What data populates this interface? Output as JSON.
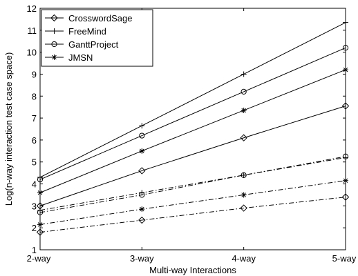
{
  "chart_data": {
    "type": "line",
    "xlabel": "Multi-way Interactions",
    "ylabel": "Log(n-way interaction test case space)",
    "categories": [
      "2-way",
      "3-way",
      "4-way",
      "5-way"
    ],
    "ylim": [
      1,
      12
    ],
    "yticks": [
      "1",
      "2",
      "3",
      "4",
      "5",
      "6",
      "7",
      "8",
      "9",
      "10",
      "11",
      "12"
    ],
    "grid": false,
    "legend_position": "top-left",
    "series": [
      {
        "name": "CrosswordSage",
        "marker": "diamond",
        "linestyle": "solid",
        "values": [
          3.0,
          4.6,
          6.1,
          7.55
        ]
      },
      {
        "name": "FreeMind",
        "marker": "plus",
        "linestyle": "solid",
        "values": [
          4.3,
          6.65,
          9.0,
          11.35
        ]
      },
      {
        "name": "GanttProject",
        "marker": "circle",
        "linestyle": "solid",
        "values": [
          4.2,
          6.2,
          8.2,
          10.2
        ]
      },
      {
        "name": "JMSN",
        "marker": "asterisk",
        "linestyle": "solid",
        "values": [
          3.6,
          5.5,
          7.35,
          9.2
        ]
      },
      {
        "marker": "diamond",
        "linestyle": "dashdot",
        "values": [
          1.8,
          2.35,
          2.9,
          3.4
        ]
      },
      {
        "marker": "plus",
        "linestyle": "dashdot",
        "values": [
          2.8,
          3.6,
          4.4,
          5.2
        ]
      },
      {
        "marker": "circle",
        "linestyle": "dashdot",
        "values": [
          2.7,
          3.5,
          4.4,
          5.25
        ]
      },
      {
        "marker": "asterisk",
        "linestyle": "dashdot",
        "values": [
          2.15,
          2.85,
          3.5,
          4.15
        ]
      }
    ]
  }
}
